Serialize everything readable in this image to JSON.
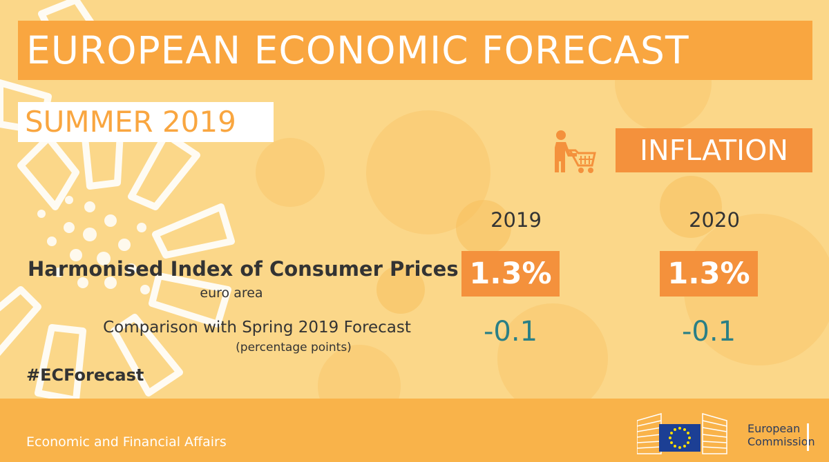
{
  "header": {
    "title": "EUROPEAN ECONOMIC FORECAST",
    "subtitle": "SUMMER 2019"
  },
  "topic": {
    "label": "INFLATION",
    "icon": "shopping-cart-icon"
  },
  "table": {
    "years": [
      "2019",
      "2020"
    ],
    "hicp_label": "Harmonised Index of Consumer Prices",
    "hicp_sublabel": "euro area",
    "hicp_values": [
      "1.3%",
      "1.3%"
    ],
    "comparison_label": "Comparison with Spring 2019 Forecast",
    "comparison_sublabel": "(percentage points)",
    "comparison_values": [
      "-0.1",
      "-0.1"
    ]
  },
  "hashtag": "#ECForecast",
  "footer": {
    "department": "Economic and Financial Affairs",
    "logo_line1": "European",
    "logo_line2": "Commission"
  },
  "colors": {
    "background": "#fbd789",
    "orange": "#f9a640",
    "dark_orange": "#f4913c",
    "teal": "#2a7f86",
    "footer": "#f9b34a"
  }
}
